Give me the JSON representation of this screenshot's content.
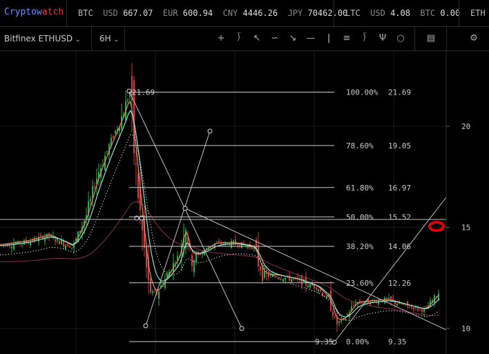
{
  "brand": {
    "part1": "Cryptow",
    "part2": "atch"
  },
  "ticker": [
    {
      "label": "BTC",
      "c1": "USD",
      "v1": "667.07",
      "c2": "EUR",
      "v2": "600.94",
      "c3": "CNY",
      "v3": "4446.26",
      "c4": "JPY",
      "v4": "70462.00"
    },
    {
      "label": "LTC",
      "c1": "USD",
      "v1": "4.08",
      "c2": "BTC",
      "v2": "0.00"
    },
    {
      "label": "ETH"
    }
  ],
  "toolbar": {
    "pair": "Bitfinex ETHUSD",
    "timeframe": "6H"
  },
  "tools": [
    "crosshair-tool",
    "line-tool",
    "ray-tool",
    "curve-tool",
    "arrow-tool",
    "horizontal-line-tool",
    "vertical-line-tool",
    "channel-tool",
    "fan-tool",
    "pitchfork-tool",
    "circle-tool",
    "indicators-tool",
    "settings-tool"
  ],
  "colors": {
    "up": "#26b04a",
    "down": "#d23c3c",
    "ema_fast": "#e08a5a",
    "ema_mid": "#8fe3e3",
    "sma_slow": "#8a3248",
    "fib": "#cfcfcf",
    "marker": "#e0000d"
  },
  "chart_data": {
    "type": "candlestick",
    "y_ticks": [
      "20",
      "15",
      "10"
    ],
    "fibonacci": [
      {
        "pct": "100.00%",
        "price": "21.69"
      },
      {
        "pct": "78.60%",
        "price": "19.05"
      },
      {
        "pct": "61.80%",
        "price": "16.97"
      },
      {
        "pct": "50.00%",
        "price": "15.52"
      },
      {
        "pct": "38.20%",
        "price": "14.06"
      },
      {
        "pct": "23.60%",
        "price": "12.26"
      },
      {
        "pct": "0.00%",
        "price": "9.35"
      }
    ],
    "fib_high_label": "21.69",
    "fib_low_label": "9.35",
    "ylim": [
      9.0,
      23.5
    ]
  }
}
